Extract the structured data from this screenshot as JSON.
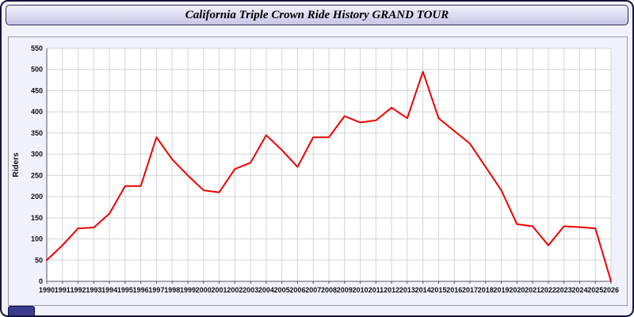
{
  "header": {
    "title": "California Triple Crown Ride History GRAND TOUR"
  },
  "colors": {
    "page_bg": "#f1f1fb",
    "plot_bg": "#ffffff",
    "grid": "#d4d4d4",
    "axis": "#555566",
    "line": "#ee0000",
    "corner_tab": "#3c3c8e"
  },
  "chart_data": {
    "type": "line",
    "title": "California Triple Crown Ride History GRAND TOUR",
    "xlabel": "",
    "ylabel": "Riders",
    "ylim": [
      0,
      550
    ],
    "ytick_step": 50,
    "grid": true,
    "legend_position": "none",
    "line_color": "#ee0000",
    "series_name": "Riders",
    "x": [
      1990,
      1991,
      1992,
      1993,
      1994,
      1995,
      1996,
      1997,
      1998,
      1999,
      2000,
      2001,
      2002,
      2003,
      2004,
      2005,
      2006,
      2007,
      2008,
      2009,
      2010,
      2011,
      2012,
      2013,
      2014,
      2015,
      2016,
      2017,
      2018,
      2019,
      2020,
      2021,
      2022,
      2023,
      2024,
      2025,
      2026
    ],
    "values": [
      50,
      85,
      125,
      127,
      160,
      225,
      225,
      340,
      288,
      250,
      215,
      210,
      265,
      280,
      345,
      310,
      270,
      340,
      340,
      390,
      375,
      380,
      410,
      385,
      495,
      385,
      355,
      325,
      270,
      215,
      135,
      130,
      85,
      130,
      128,
      125,
      0
    ]
  }
}
